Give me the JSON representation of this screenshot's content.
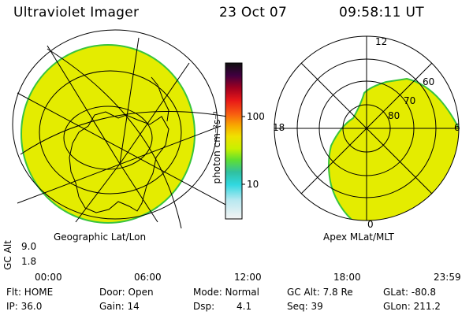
{
  "header": {
    "instrument": "Ultraviolet Imager",
    "date": "23 Oct 07",
    "time": "09:58:11 UT"
  },
  "colors": {
    "emission_fill": "#e4ec00",
    "emission_edge": "#39c43c",
    "grid_line": "#000000",
    "timeline_marker": "#ff0000"
  },
  "color_bar": {
    "unit_label": "photon cm⁻²s⁻¹",
    "ticks": [
      "100",
      "10"
    ],
    "scale": "log"
  },
  "left_panel": {
    "caption": "Geographic Lat/Lon"
  },
  "right_panel": {
    "caption": "Apex MLat/MLT",
    "mlt_labels": [
      "12",
      "18",
      "6",
      "0"
    ],
    "mlat_labels": [
      "60",
      "70",
      "80"
    ]
  },
  "timeline": {
    "axis_label": "GC Alt",
    "y_ticks": [
      "9.0",
      "1.8"
    ],
    "x_ticks": [
      "00:00",
      "06:00",
      "12:00",
      "18:00",
      "23:59"
    ],
    "current_time_fraction": 0.416
  },
  "footer": {
    "flt": "Flt: HOME",
    "ip": "IP: 36.0",
    "door": "Door: Open",
    "gain": "Gain: 14",
    "mode": "Mode: Normal",
    "dsp": "Dsp:",
    "dsp_value": "4.1",
    "gc_alt": "GC Alt: 7.8 Re",
    "seq": "Seq: 39",
    "glat": "GLat: -80.8",
    "glon": "GLon: 211.2"
  }
}
